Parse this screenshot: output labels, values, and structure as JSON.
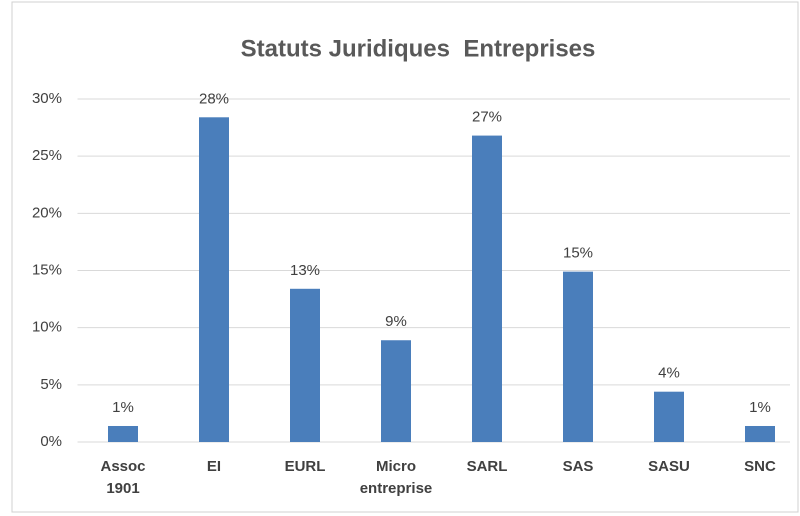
{
  "chart_data": {
    "type": "bar",
    "title": "Statuts Juridiques  Entreprises",
    "categories": [
      "Assoc\n1901",
      "EI",
      "EURL",
      "Micro\nentreprise",
      "SARL",
      "SAS",
      "SASU",
      "SNC"
    ],
    "values": [
      1.4,
      28.4,
      13.4,
      8.9,
      26.8,
      14.9,
      4.4,
      1.4
    ],
    "value_labels": [
      "1%",
      "28%",
      "13%",
      "9%",
      "27%",
      "15%",
      "4%",
      "1%"
    ],
    "color": "#4a7ebb",
    "ylim": [
      0,
      30
    ],
    "yticks": [
      {
        "value": 0,
        "label": "0%"
      },
      {
        "value": 5,
        "label": "5%"
      },
      {
        "value": 10,
        "label": "10%"
      },
      {
        "value": 15,
        "label": "15%"
      },
      {
        "value": 20,
        "label": "20%"
      },
      {
        "value": 25,
        "label": "25%"
      },
      {
        "value": 30,
        "label": "30%"
      }
    ],
    "grid": true
  }
}
